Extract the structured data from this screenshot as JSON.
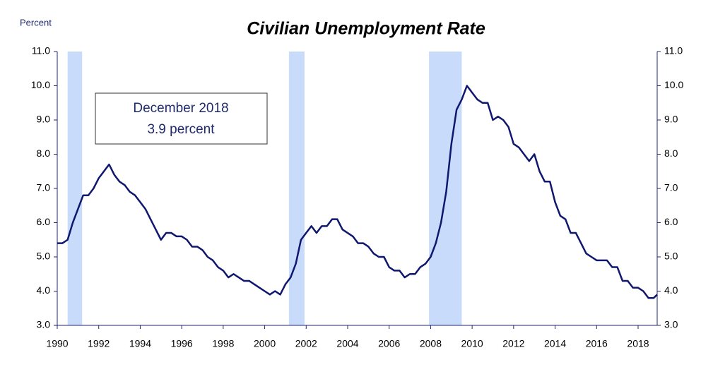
{
  "chart_data": {
    "type": "line",
    "title": "Civilian Unemployment Rate",
    "y_label": "Percent",
    "annotation": [
      "December 2018",
      "3.9 percent"
    ],
    "recessions": [
      [
        1990.5,
        1991.2
      ],
      [
        2001.17,
        2001.92
      ],
      [
        2007.92,
        2009.5
      ]
    ],
    "recession_color": "#c9dbfb",
    "xlim": [
      1990,
      2018.92
    ],
    "xticks": [
      1990,
      1992,
      1994,
      1996,
      1998,
      2000,
      2002,
      2004,
      2006,
      2008,
      2010,
      2012,
      2014,
      2016,
      2018
    ],
    "ylim": [
      3,
      11
    ],
    "yticks": [
      {
        "value": 3,
        "label": "3.0"
      },
      {
        "value": 4,
        "label": "4.0"
      },
      {
        "value": 5,
        "label": "5.0"
      },
      {
        "value": 6,
        "label": "6.0"
      },
      {
        "value": 7,
        "label": "7.0"
      },
      {
        "value": 8,
        "label": "8.0"
      },
      {
        "value": 9,
        "label": "9.0"
      },
      {
        "value": 10,
        "label": "10.0"
      },
      {
        "value": 11,
        "label": "11.0"
      }
    ],
    "y2lim": [
      3,
      11
    ],
    "y2ticks": [
      {
        "value": 3,
        "label": "3.0"
      },
      {
        "value": 4,
        "label": "4.0"
      },
      {
        "value": 5,
        "label": "5.0"
      },
      {
        "value": 6,
        "label": "6.0"
      },
      {
        "value": 7,
        "label": "7.0"
      },
      {
        "value": 8,
        "label": "8.0"
      },
      {
        "value": 9,
        "label": "9.0"
      },
      {
        "value": 10,
        "label": "10.0"
      },
      {
        "value": 11,
        "label": "11.0"
      }
    ],
    "x": [
      1990,
      1990.25,
      1990.5,
      1990.75,
      1991,
      1991.25,
      1991.5,
      1991.75,
      1992,
      1992.25,
      1992.5,
      1992.75,
      1993,
      1993.25,
      1993.5,
      1993.75,
      1994,
      1994.25,
      1994.5,
      1994.75,
      1995,
      1995.25,
      1995.5,
      1995.75,
      1996,
      1996.25,
      1996.5,
      1996.75,
      1997,
      1997.25,
      1997.5,
      1997.75,
      1998,
      1998.25,
      1998.5,
      1998.75,
      1999,
      1999.25,
      1999.5,
      1999.75,
      2000,
      2000.25,
      2000.5,
      2000.75,
      2001,
      2001.25,
      2001.5,
      2001.75,
      2002,
      2002.25,
      2002.5,
      2002.75,
      2003,
      2003.25,
      2003.5,
      2003.75,
      2004,
      2004.25,
      2004.5,
      2004.75,
      2005,
      2005.25,
      2005.5,
      2005.75,
      2006,
      2006.25,
      2006.5,
      2006.75,
      2007,
      2007.25,
      2007.5,
      2007.75,
      2008,
      2008.25,
      2008.5,
      2008.75,
      2009,
      2009.25,
      2009.5,
      2009.75,
      2010,
      2010.25,
      2010.5,
      2010.75,
      2011,
      2011.25,
      2011.5,
      2011.75,
      2012,
      2012.25,
      2012.5,
      2012.75,
      2013,
      2013.25,
      2013.5,
      2013.75,
      2014,
      2014.25,
      2014.5,
      2014.75,
      2015,
      2015.25,
      2015.5,
      2015.75,
      2016,
      2016.25,
      2016.5,
      2016.75,
      2017,
      2017.25,
      2017.5,
      2017.75,
      2018,
      2018.25,
      2018.5,
      2018.75,
      2018.92
    ],
    "series": [
      {
        "color": "#10176e",
        "values": [
          5.4,
          5.4,
          5.5,
          6.0,
          6.4,
          6.8,
          6.8,
          7.0,
          7.3,
          7.5,
          7.7,
          7.4,
          7.2,
          7.1,
          6.9,
          6.8,
          6.6,
          6.4,
          6.1,
          5.8,
          5.5,
          5.7,
          5.7,
          5.6,
          5.6,
          5.5,
          5.3,
          5.3,
          5.2,
          5.0,
          4.9,
          4.7,
          4.6,
          4.4,
          4.5,
          4.4,
          4.3,
          4.3,
          4.2,
          4.1,
          4.0,
          3.9,
          4.0,
          3.9,
          4.2,
          4.4,
          4.8,
          5.5,
          5.7,
          5.9,
          5.7,
          5.9,
          5.9,
          6.1,
          6.1,
          5.8,
          5.7,
          5.6,
          5.4,
          5.4,
          5.3,
          5.1,
          5.0,
          5.0,
          4.7,
          4.6,
          4.6,
          4.4,
          4.5,
          4.5,
          4.7,
          4.8,
          5.0,
          5.4,
          6.0,
          6.9,
          8.3,
          9.3,
          9.6,
          10.0,
          9.8,
          9.6,
          9.5,
          9.5,
          9.0,
          9.1,
          9.0,
          8.8,
          8.3,
          8.2,
          8.0,
          7.8,
          8.0,
          7.5,
          7.2,
          7.2,
          6.6,
          6.2,
          6.1,
          5.7,
          5.7,
          5.4,
          5.1,
          5.0,
          4.9,
          4.9,
          4.9,
          4.7,
          4.7,
          4.3,
          4.3,
          4.1,
          4.1,
          4.0,
          3.8,
          3.8,
          3.9
        ]
      }
    ]
  }
}
